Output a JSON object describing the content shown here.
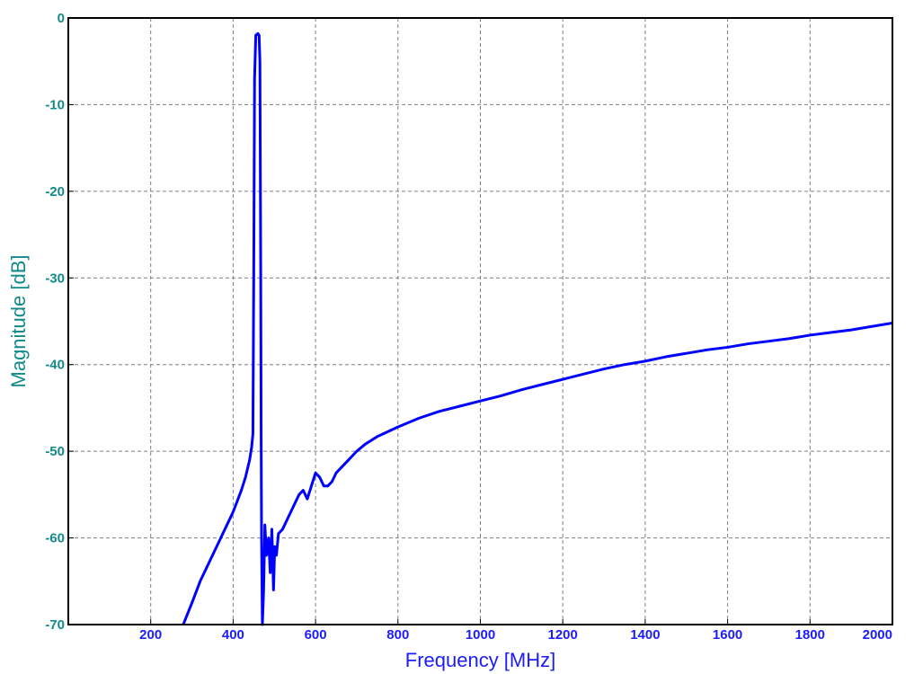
{
  "chart_data": {
    "type": "line",
    "title": "",
    "xlabel": "Frequency [MHz]",
    "ylabel": "Magnitude [dB]",
    "xlim": [
      0,
      2000
    ],
    "ylim": [
      -70,
      0
    ],
    "xticks": [
      200,
      400,
      600,
      800,
      1000,
      1200,
      1400,
      1600,
      1800,
      2000
    ],
    "yticks": [
      0,
      -10,
      -20,
      -30,
      -40,
      -50,
      -60,
      -70
    ],
    "x_tick_labels": [
      "200",
      "400",
      "600",
      "800",
      "1000",
      "1200",
      "1400",
      "1600",
      "1800",
      "2000"
    ],
    "y_tick_labels": [
      "0",
      "-10",
      "-20",
      "-30",
      "-40",
      "-50",
      "-60",
      "-70"
    ],
    "grid": true,
    "legend": "none",
    "series": [
      {
        "color": "#0000ff",
        "points": [
          [
            279,
            -70
          ],
          [
            300,
            -67.5
          ],
          [
            320,
            -65
          ],
          [
            340,
            -63
          ],
          [
            360,
            -61
          ],
          [
            380,
            -59
          ],
          [
            400,
            -57
          ],
          [
            420,
            -54.5
          ],
          [
            430,
            -53
          ],
          [
            440,
            -51
          ],
          [
            445,
            -49.5
          ],
          [
            448,
            -48
          ],
          [
            450,
            -30
          ],
          [
            452,
            -7
          ],
          [
            455,
            -2
          ],
          [
            460,
            -1.8
          ],
          [
            463,
            -2
          ],
          [
            465,
            -5
          ],
          [
            467,
            -30
          ],
          [
            468,
            -48
          ],
          [
            469,
            -60
          ],
          [
            471,
            -70
          ],
          [
            474,
            -66
          ],
          [
            477,
            -58.5
          ],
          [
            481,
            -62
          ],
          [
            486,
            -60
          ],
          [
            490,
            -64
          ],
          [
            494,
            -59
          ],
          [
            498,
            -66
          ],
          [
            501,
            -61
          ],
          [
            505,
            -62
          ],
          [
            510,
            -59.5
          ],
          [
            520,
            -59
          ],
          [
            530,
            -58
          ],
          [
            540,
            -57
          ],
          [
            550,
            -56
          ],
          [
            560,
            -55
          ],
          [
            570,
            -54.5
          ],
          [
            580,
            -55.5
          ],
          [
            590,
            -54
          ],
          [
            600,
            -52.5
          ],
          [
            610,
            -53
          ],
          [
            620,
            -54
          ],
          [
            630,
            -54
          ],
          [
            640,
            -53.5
          ],
          [
            650,
            -52.5
          ],
          [
            660,
            -52
          ],
          [
            680,
            -51
          ],
          [
            700,
            -50
          ],
          [
            720,
            -49.2
          ],
          [
            750,
            -48.3
          ],
          [
            800,
            -47.2
          ],
          [
            850,
            -46.2
          ],
          [
            900,
            -45.4
          ],
          [
            950,
            -44.8
          ],
          [
            1000,
            -44.2
          ],
          [
            1050,
            -43.6
          ],
          [
            1100,
            -42.9
          ],
          [
            1150,
            -42.3
          ],
          [
            1200,
            -41.7
          ],
          [
            1250,
            -41.1
          ],
          [
            1300,
            -40.5
          ],
          [
            1350,
            -40.0
          ],
          [
            1400,
            -39.6
          ],
          [
            1450,
            -39.1
          ],
          [
            1500,
            -38.7
          ],
          [
            1550,
            -38.3
          ],
          [
            1600,
            -38.0
          ],
          [
            1650,
            -37.6
          ],
          [
            1700,
            -37.3
          ],
          [
            1750,
            -37.0
          ],
          [
            1800,
            -36.6
          ],
          [
            1850,
            -36.3
          ],
          [
            1900,
            -36.0
          ],
          [
            1950,
            -35.6
          ],
          [
            2000,
            -35.2
          ]
        ]
      }
    ]
  },
  "colors": {
    "axis_label": "#138a8a",
    "y_ticks": "#138a8a",
    "x_ticks": "#1c1cff",
    "grid": "#7f7f7f",
    "line": "#0000ff"
  }
}
